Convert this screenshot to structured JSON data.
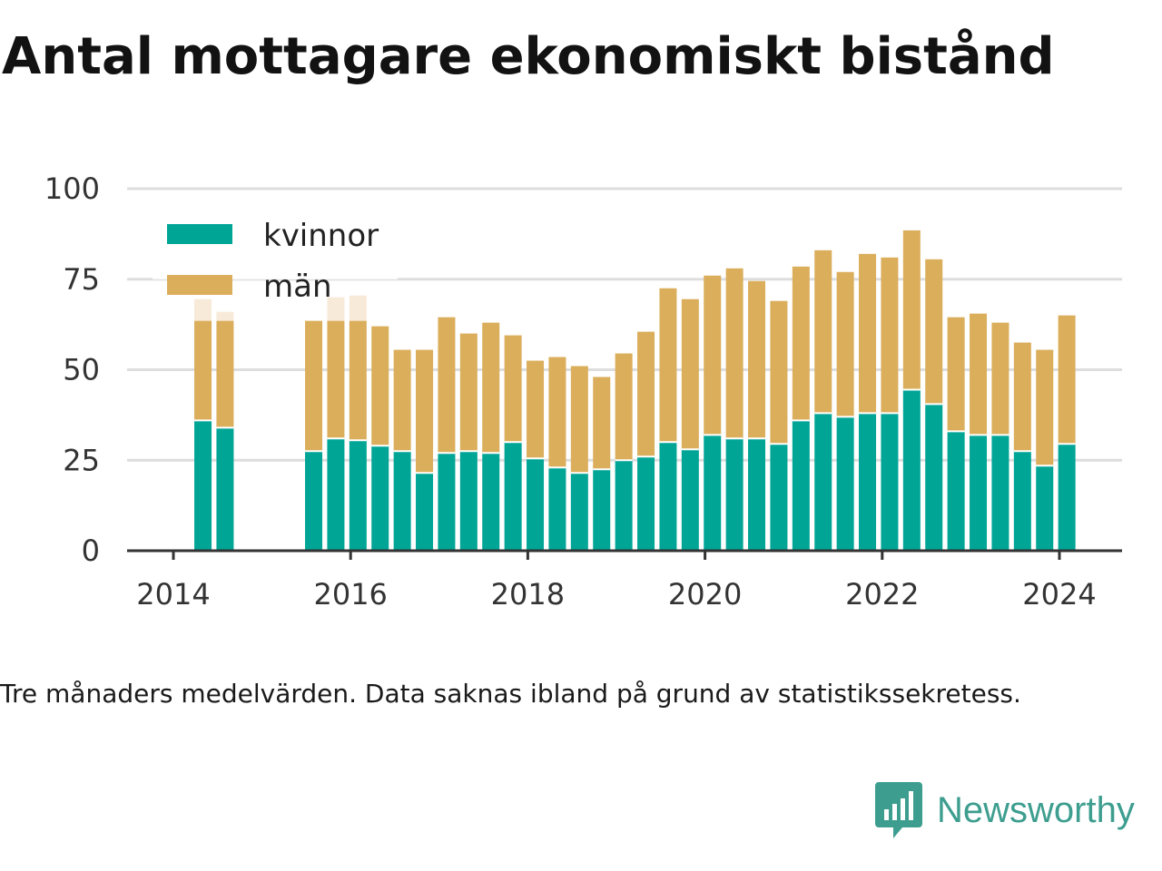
{
  "title": "Antal mottagare ekonomiskt bistånd",
  "note": "Tre månaders medelvärden. Data saknas ibland på grund av statistikssekretess.",
  "brand": "Newsworthy",
  "colors": {
    "kvinnor": "#00a596",
    "man": "#dbae5c",
    "estimate": "#f8ead8",
    "grid": "#dddddd",
    "axis": "#333333",
    "brand": "#3d9e8f"
  },
  "chart_data": {
    "type": "bar",
    "stacked": true,
    "title": "Antal mottagare ekonomiskt bistånd",
    "ylim": [
      0,
      100
    ],
    "yticks": [
      0,
      25,
      50,
      75,
      100
    ],
    "xlim": [
      "2014-01",
      "2024-12"
    ],
    "xticks": [
      "2014",
      "2016",
      "2018",
      "2020",
      "2022",
      "2024"
    ],
    "grid": true,
    "legend": "top-left",
    "categories": [
      "2014-05",
      "2014-08",
      "2015-08",
      "2015-11",
      "2016-02",
      "2016-05",
      "2016-08",
      "2016-11",
      "2017-02",
      "2017-05",
      "2017-08",
      "2017-11",
      "2018-02",
      "2018-05",
      "2018-08",
      "2018-11",
      "2019-02",
      "2019-05",
      "2019-08",
      "2019-11",
      "2020-02",
      "2020-05",
      "2020-08",
      "2020-11",
      "2021-02",
      "2021-05",
      "2021-08",
      "2021-11",
      "2022-02",
      "2022-05",
      "2022-08",
      "2022-11",
      "2023-02",
      "2023-05",
      "2023-08",
      "2023-11",
      "2024-02"
    ],
    "series": [
      {
        "name": "kvinnor",
        "values": [
          36,
          34,
          27.5,
          31,
          30.5,
          29,
          27.5,
          21.5,
          27,
          27.5,
          27,
          30,
          25.5,
          23,
          21.5,
          22.5,
          25,
          26,
          30,
          28,
          32,
          31,
          31,
          29.5,
          36,
          38,
          37,
          38,
          38,
          44.5,
          40.5,
          33,
          32,
          32,
          27.5,
          23.5,
          29.5
        ]
      },
      {
        "name": "män",
        "values": [
          27.5,
          29.5,
          36,
          32.5,
          33,
          33,
          28,
          34,
          37.5,
          32.5,
          36,
          29.5,
          27,
          30.5,
          29.5,
          25.5,
          29.5,
          34.5,
          42.5,
          41.5,
          44,
          47,
          43.5,
          39.5,
          42.5,
          45,
          40,
          44,
          43,
          44,
          40,
          31.5,
          33.5,
          31,
          30,
          32,
          35.5
        ]
      }
    ],
    "estimated_total": [
      69.5,
      66,
      0,
      70,
      70.5,
      0,
      0,
      0,
      0,
      0,
      0,
      0,
      0,
      0,
      0,
      0,
      0,
      0,
      0,
      0,
      0,
      0,
      0,
      0,
      0,
      0,
      0,
      0,
      0,
      0,
      0,
      0,
      0,
      0,
      0,
      0,
      0
    ]
  }
}
